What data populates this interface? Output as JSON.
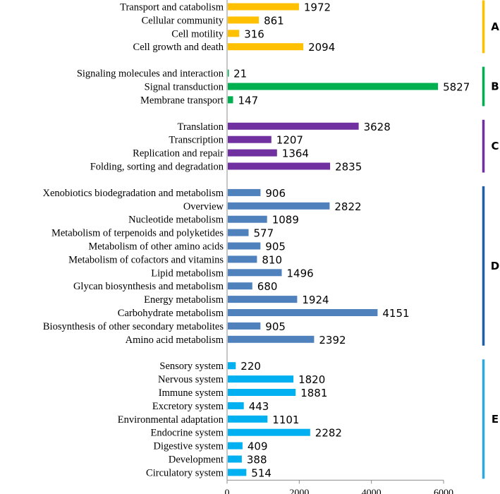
{
  "chart_data": {
    "type": "bar",
    "orientation": "horizontal",
    "xlim": [
      0,
      6000
    ],
    "xticks": [
      0,
      2000,
      4000,
      6000
    ],
    "grid": false,
    "groups": [
      {
        "name": "A",
        "color": "#FFC000",
        "categories": [
          "Transport and catabolism",
          "Cellular community",
          "Cell motility",
          "Cell growth and death"
        ],
        "values": [
          1972,
          861,
          316,
          2094
        ]
      },
      {
        "name": "B",
        "color": "#00B050",
        "categories": [
          "Signaling molecules and interaction",
          "Signal transduction",
          "Membrane transport"
        ],
        "values": [
          21,
          5827,
          147
        ]
      },
      {
        "name": "C",
        "color": "#7030A0",
        "categories": [
          "Translation",
          "Transcription",
          "Replication and repair",
          "Folding, sorting and degradation"
        ],
        "values": [
          3628,
          1207,
          1364,
          2835
        ]
      },
      {
        "name": "D",
        "color": "#4F81BD",
        "bracket_color": "#1F5FA6",
        "categories": [
          "Xenobiotics biodegradation and metabolism",
          "Overview",
          "Nucleotide metabolism",
          "Metabolism of terpenoids and polyketides",
          "Metabolism of other amino acids",
          "Metabolism of cofactors and vitamins",
          "Lipid metabolism",
          "Glycan biosynthesis and metabolism",
          "Energy metabolism",
          "Carbohydrate metabolism",
          "Biosynthesis of other secondary metabolites",
          "Amino acid metabolism"
        ],
        "values": [
          906,
          2822,
          1089,
          577,
          905,
          810,
          1496,
          680,
          1924,
          4151,
          905,
          2392
        ]
      },
      {
        "name": "E",
        "color": "#00B0F0",
        "bracket_color": "#2EA8DE",
        "categories": [
          "Sensory system",
          "Nervous system",
          "Immune system",
          "Excretory system",
          "Environmental adaptation",
          "Endocrine system",
          "Digestive system",
          "Development",
          "Circulatory system"
        ],
        "values": [
          220,
          1820,
          1881,
          443,
          1101,
          2282,
          409,
          388,
          514
        ]
      }
    ]
  }
}
